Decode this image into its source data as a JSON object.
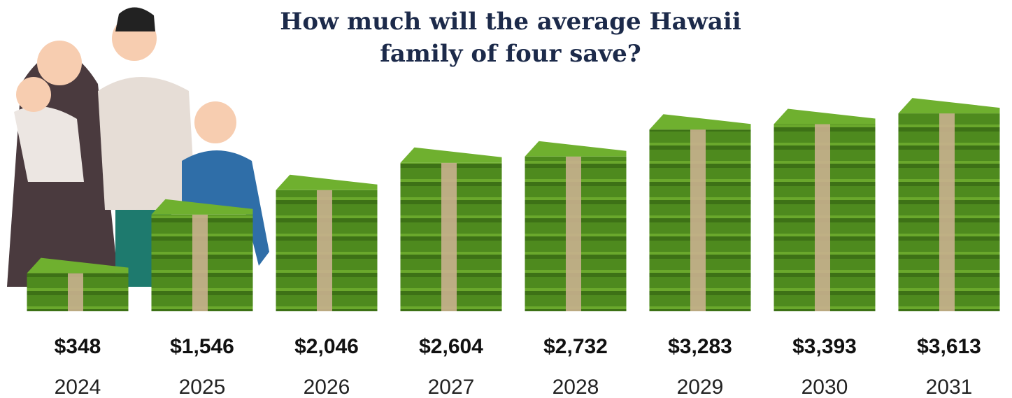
{
  "chart_data": {
    "type": "bar",
    "title": "How much will the average Hawaii family of four save?",
    "categories": [
      "2024",
      "2025",
      "2026",
      "2027",
      "2028",
      "2029",
      "2030",
      "2031"
    ],
    "values": [
      348,
      1546,
      2046,
      2604,
      2732,
      3283,
      3393,
      3613
    ],
    "value_labels": [
      "$348",
      "$1,546",
      "$2,046",
      "$2,604",
      "$2,732",
      "$3,283",
      "$3,393",
      "$3,613"
    ],
    "color": "#4e8a1e"
  }
}
